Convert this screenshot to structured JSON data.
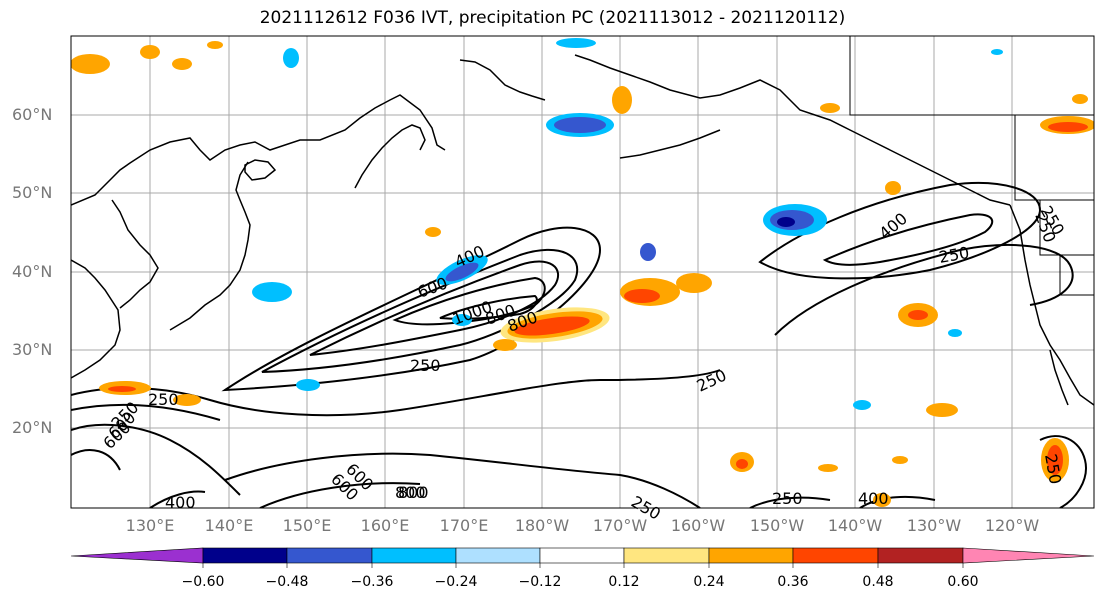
{
  "title": "2021112612 F036 IVT, precipitation PC (2021113012 - 2021120112)",
  "lat_labels": [
    "60°N",
    "50°N",
    "40°N",
    "30°N",
    "20°N"
  ],
  "lon_labels": [
    "130°E",
    "140°E",
    "150°E",
    "160°E",
    "170°E",
    "180°W",
    "170°W",
    "160°W",
    "150°W",
    "140°W",
    "130°W",
    "120°W"
  ],
  "contour_labels": [
    "250",
    "400",
    "600",
    "800",
    "1000",
    "250",
    "800",
    "600",
    "250",
    "250",
    "400",
    "250",
    "250",
    "400",
    "250",
    "250",
    "800",
    "600",
    "600",
    "800",
    "400",
    "250",
    "600",
    "250"
  ],
  "colorbar": {
    "colors": [
      "#9b30d0",
      "#00008b",
      "#3557cf",
      "#00bfff",
      "#aee0ff",
      "#ffffff",
      "#ffe680",
      "#ffa500",
      "#ff4500",
      "#b22222",
      "#ff85b3"
    ],
    "tick_labels": [
      "−0.60",
      "−0.48",
      "−0.36",
      "−0.24",
      "−0.12",
      "0.12",
      "0.24",
      "0.36",
      "0.48",
      "0.60"
    ]
  }
}
